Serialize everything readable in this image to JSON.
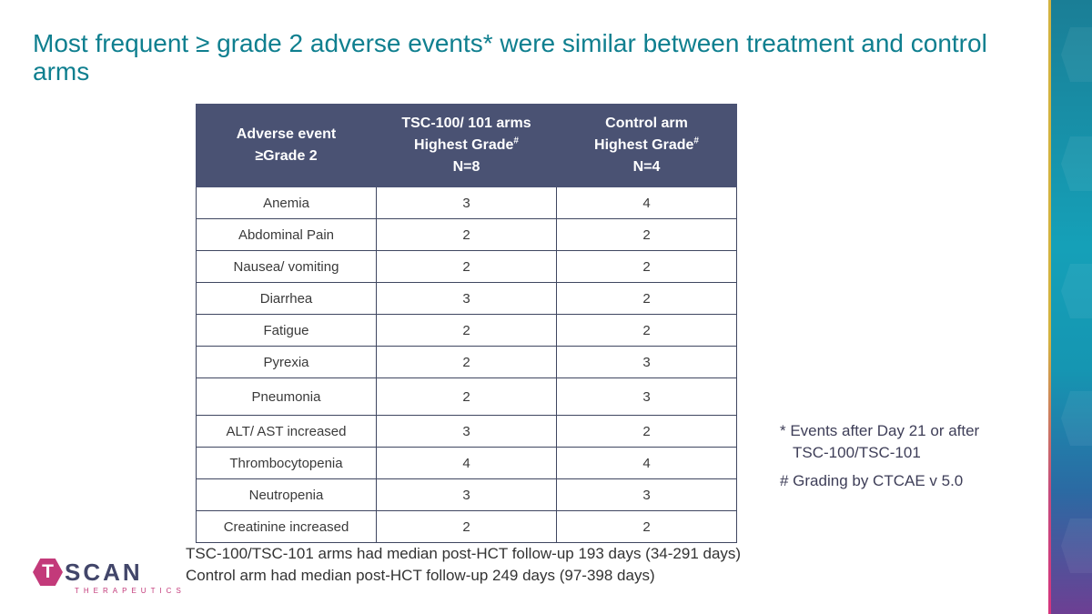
{
  "slide": {
    "title": "Most frequent ≥ grade 2 adverse events* were similar between treatment and control arms"
  },
  "table": {
    "headers": [
      {
        "line1": "Adverse event",
        "line2": "≥Grade 2",
        "line3": "",
        "sup": ""
      },
      {
        "line1": "TSC-100/ 101 arms",
        "line2": "Highest Grade",
        "line3": "N=8",
        "sup": "#"
      },
      {
        "line1": "Control arm",
        "line2": "Highest Grade",
        "line3": "N=4",
        "sup": "#"
      }
    ],
    "rows": [
      [
        "Anemia",
        "3",
        "4"
      ],
      [
        "Abdominal Pain",
        "2",
        "2"
      ],
      [
        "Nausea/ vomiting",
        "2",
        "2"
      ],
      [
        "Diarrhea",
        "3",
        "2"
      ],
      [
        "Fatigue",
        "2",
        "2"
      ],
      [
        "Pyrexia",
        "2",
        "3"
      ],
      [
        "Pneumonia",
        "2",
        "3"
      ],
      [
        "ALT/ AST increased",
        "3",
        "2"
      ],
      [
        "Thrombocytopenia",
        "4",
        "4"
      ],
      [
        "Neutropenia",
        "3",
        "3"
      ],
      [
        "Creatinine increased",
        "2",
        "2"
      ]
    ]
  },
  "notes": {
    "events_line1": "* Events after Day 21 or after",
    "events_line2": "TSC-100/TSC-101",
    "grading": "# Grading by CTCAE v 5.0"
  },
  "footer": {
    "line1": "TSC-100/TSC-101 arms had median post-HCT follow-up 193 days (34-291 days)",
    "line2": "Control arm had median post-HCT follow-up 249 days (97-398 days)"
  },
  "logo": {
    "mark": "T",
    "word": "SCAN",
    "sub": "THERAPEUTICS"
  },
  "colors": {
    "title": "#0f7f8f",
    "header_bg": "#4a5273",
    "brand_magenta": "#c33a7a",
    "brand_navy": "#42466a"
  }
}
